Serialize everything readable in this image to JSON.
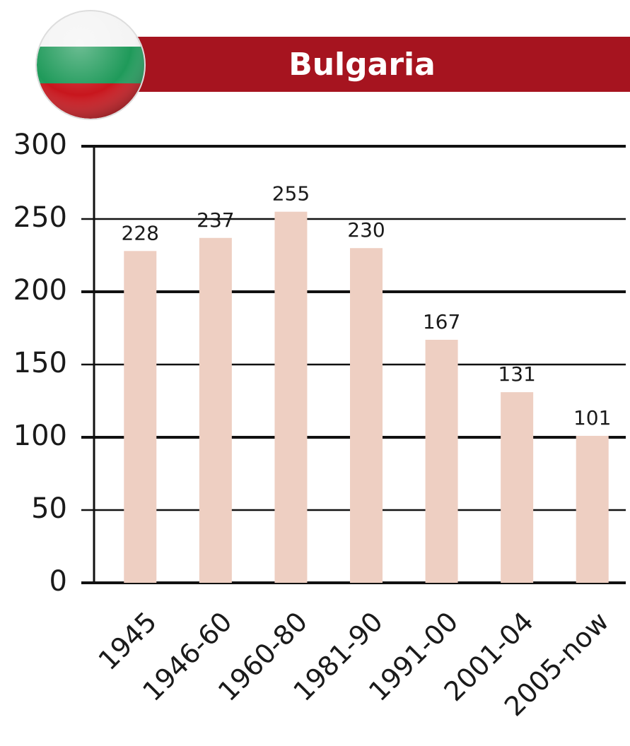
{
  "chart_data": {
    "type": "bar",
    "title": "Bulgaria",
    "categories": [
      "1945",
      "1946-60",
      "1960-80",
      "1981-90",
      "1991-00",
      "2001-04",
      "2005-now"
    ],
    "values": [
      228,
      237,
      255,
      230,
      167,
      131,
      101
    ],
    "color": "#eecfc2",
    "ylim": [
      0,
      300
    ],
    "yticks": [
      0,
      50,
      100,
      150,
      200,
      250,
      300
    ],
    "grid": true
  }
}
